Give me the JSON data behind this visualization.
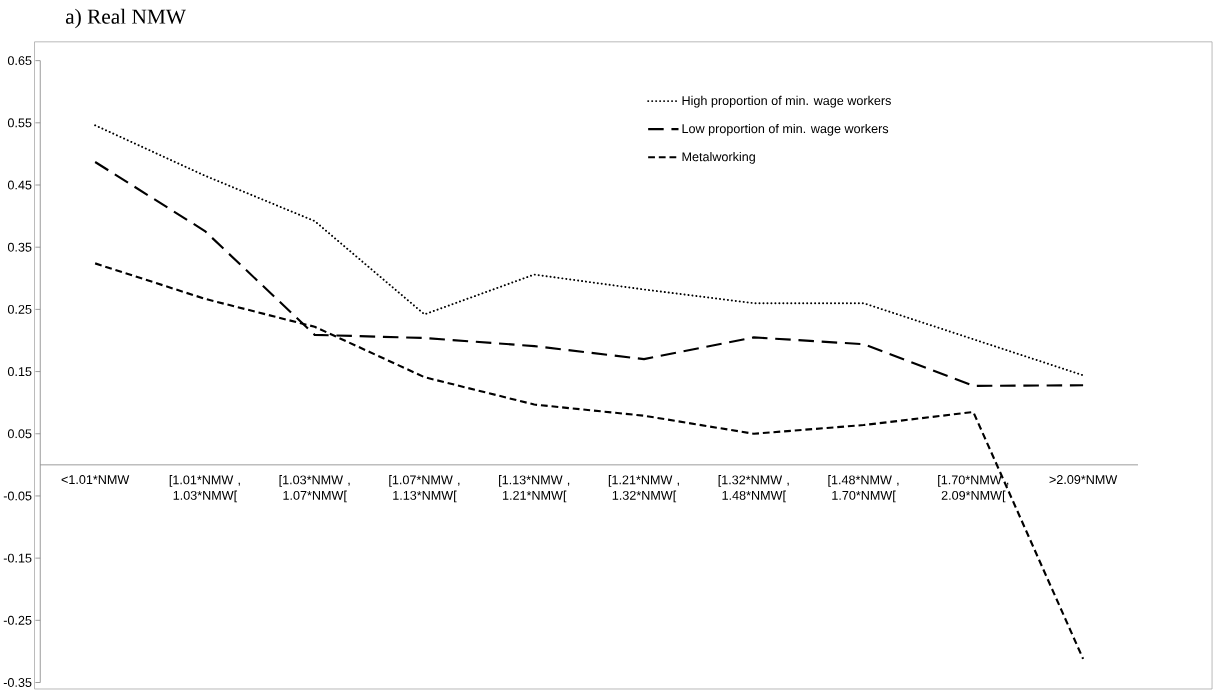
{
  "chart_data": {
    "type": "line",
    "title": "a)   Real NMW",
    "categories": [
      "<1.01*NMW",
      "[1.01*NMW , 1.03*NMW[",
      "[1.03*NMW , 1.07*NMW[",
      "[1.07*NMW , 1.13*NMW[",
      "[1.13*NMW , 1.21*NMW[",
      "[1.21*NMW , 1.32*NMW[",
      "[1.32*NMW , 1.48*NMW[",
      "[1.48*NMW , 1.70*NMW[",
      "[1.70*NMW , 2.09*NMW[",
      ">2.09*NMW"
    ],
    "series": [
      {
        "name": "High proportion of min. wage workers",
        "color": "#000000",
        "line_style": "dotted",
        "values": [
          0.546,
          0.465,
          0.392,
          0.242,
          0.306,
          0.282,
          0.26,
          0.26,
          0.202,
          0.144
        ]
      },
      {
        "name": "Low proportion of min. wage workers",
        "color": "#000000",
        "line_style": "long dashed",
        "values": [
          0.487,
          0.376,
          0.209,
          0.204,
          0.191,
          0.17,
          0.205,
          0.194,
          0.127,
          0.128
        ]
      },
      {
        "name": "Metalworking",
        "color": "#000000",
        "line_style": "dashed",
        "values": [
          0.324,
          0.267,
          0.222,
          0.141,
          0.097,
          0.079,
          0.05,
          0.064,
          0.085,
          -0.312
        ]
      }
    ],
    "ylim": [
      -0.35,
      0.65
    ],
    "yticks": [
      -0.35,
      -0.25,
      -0.15,
      -0.05,
      0.05,
      0.15,
      0.25,
      0.35,
      0.45,
      0.55,
      0.65
    ],
    "grid": false,
    "legend": "top right",
    "marker": "none"
  }
}
